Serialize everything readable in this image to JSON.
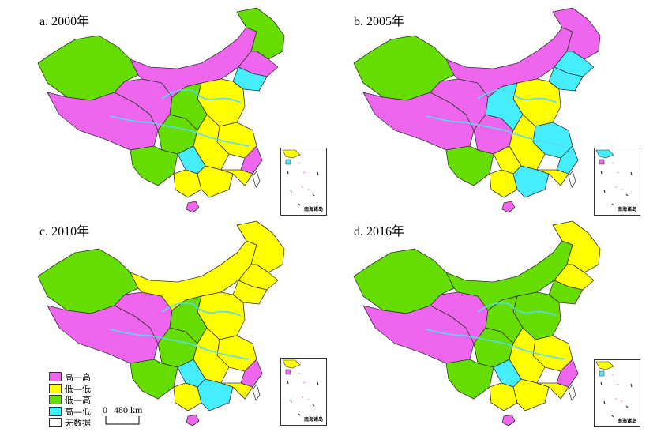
{
  "colors": {
    "high_high": "#ee66ee",
    "low_low": "#ffff00",
    "low_high": "#66dd00",
    "high_low": "#44eeff",
    "no_data": "#ffffff",
    "border": "#333333",
    "river": "#55ddee"
  },
  "panels": [
    {
      "title": "a. 2000年",
      "inset_label": "南海诸岛"
    },
    {
      "title": "b. 2005年",
      "inset_label": "南海诸岛"
    },
    {
      "title": "c. 2010年",
      "inset_label": "南海诸岛"
    },
    {
      "title": "d. 2016年",
      "inset_label": "南海诸岛"
    }
  ],
  "legend": {
    "items": [
      {
        "label": "高—高",
        "color": "#ee66ee"
      },
      {
        "label": "低—低",
        "color": "#ffff00"
      },
      {
        "label": "低—高",
        "color": "#66dd00"
      },
      {
        "label": "高—低",
        "color": "#44eeff"
      },
      {
        "label": "无数据",
        "color": "#ffffff"
      }
    ]
  },
  "scale": {
    "zero": "0",
    "distance": "480 km"
  }
}
